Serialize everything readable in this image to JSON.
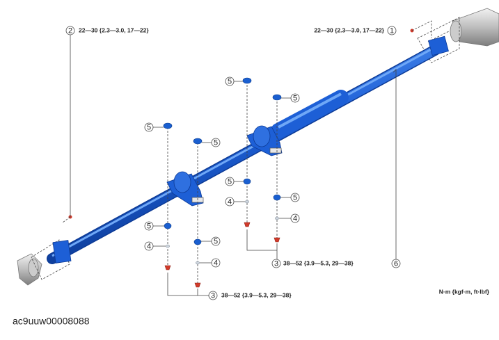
{
  "callouts": [
    {
      "number": 1,
      "torque": "22—30 {2.3—3.0, 17—22}"
    },
    {
      "number": 2,
      "torque": "22—30 {2.3—3.0, 17—22}"
    },
    {
      "number": 3,
      "torque": "38—52 {3.9—5.3, 29—38}"
    },
    {
      "number": 3,
      "torque": "38—52 {3.9—5.3, 29—38}"
    },
    {
      "number": 4
    },
    {
      "number": 4
    },
    {
      "number": 4
    },
    {
      "number": 4
    },
    {
      "number": 5
    },
    {
      "number": 5
    },
    {
      "number": 5
    },
    {
      "number": 5
    },
    {
      "number": 5
    },
    {
      "number": 5
    },
    {
      "number": 5
    },
    {
      "number": 5
    },
    {
      "number": 6
    }
  ],
  "unit_note": "N·m {kgf·m, ft·lbf}",
  "figure_code": "ac9uuw00008088"
}
